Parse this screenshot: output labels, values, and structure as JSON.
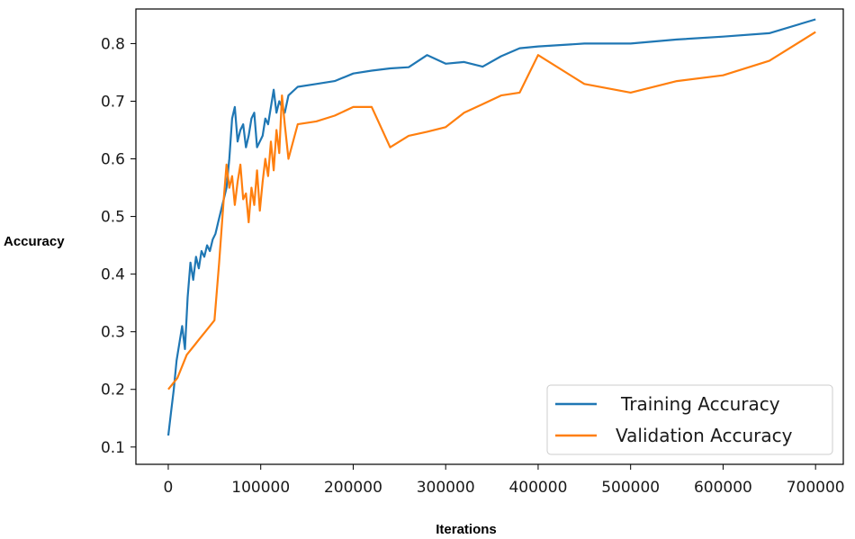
{
  "chart_data": {
    "type": "line",
    "title": "",
    "xlabel": "Iterations",
    "ylabel": "Accuracy",
    "xlim": [
      -35000,
      730000
    ],
    "ylim": [
      0.07,
      0.86
    ],
    "xticks": [
      0,
      100000,
      200000,
      300000,
      400000,
      500000,
      600000,
      700000
    ],
    "xtick_labels": [
      "0",
      "100000",
      "200000",
      "300000",
      "400000",
      "500000",
      "600000",
      "700000"
    ],
    "yticks": [
      0.1,
      0.2,
      0.3,
      0.4,
      0.5,
      0.6,
      0.7,
      0.8
    ],
    "ytick_labels": [
      "0.1",
      "0.2",
      "0.3",
      "0.4",
      "0.5",
      "0.6",
      "0.7",
      "0.8"
    ],
    "grid": false,
    "legend_position": "lower-right",
    "series": [
      {
        "name": "Training Accuracy",
        "color": "#1f77b4",
        "x": [
          0,
          3000,
          6000,
          9000,
          12000,
          15000,
          18000,
          21000,
          24000,
          27000,
          30000,
          33000,
          36000,
          39000,
          42000,
          45000,
          48000,
          51000,
          54000,
          57000,
          60000,
          63000,
          66000,
          69000,
          72000,
          75000,
          78000,
          81000,
          84000,
          87000,
          90000,
          93000,
          96000,
          99000,
          102000,
          105000,
          108000,
          111000,
          114000,
          117000,
          120000,
          123000,
          126000,
          130000,
          140000,
          160000,
          180000,
          200000,
          220000,
          240000,
          260000,
          280000,
          300000,
          320000,
          340000,
          360000,
          380000,
          400000,
          450000,
          500000,
          550000,
          600000,
          650000,
          700000
        ],
        "values": [
          0.12,
          0.16,
          0.2,
          0.25,
          0.28,
          0.31,
          0.27,
          0.36,
          0.42,
          0.39,
          0.43,
          0.41,
          0.44,
          0.43,
          0.45,
          0.44,
          0.46,
          0.47,
          0.49,
          0.51,
          0.53,
          0.55,
          0.6,
          0.67,
          0.69,
          0.63,
          0.65,
          0.66,
          0.62,
          0.64,
          0.67,
          0.68,
          0.62,
          0.63,
          0.64,
          0.67,
          0.66,
          0.69,
          0.72,
          0.68,
          0.7,
          0.69,
          0.68,
          0.71,
          0.725,
          0.73,
          0.735,
          0.748,
          0.753,
          0.757,
          0.759,
          0.78,
          0.765,
          0.768,
          0.76,
          0.778,
          0.792,
          0.795,
          0.8,
          0.8,
          0.807,
          0.812,
          0.818,
          0.842
        ]
      },
      {
        "name": "Validation Accuracy",
        "color": "#ff7f0e",
        "x": [
          0,
          10000,
          20000,
          30000,
          35000,
          40000,
          45000,
          50000,
          55000,
          60000,
          63000,
          66000,
          69000,
          72000,
          75000,
          78000,
          81000,
          84000,
          87000,
          90000,
          93000,
          96000,
          99000,
          102000,
          105000,
          108000,
          111000,
          114000,
          117000,
          120000,
          123000,
          126000,
          130000,
          140000,
          160000,
          180000,
          200000,
          220000,
          240000,
          260000,
          280000,
          300000,
          320000,
          340000,
          360000,
          380000,
          400000,
          450000,
          500000,
          550000,
          600000,
          650000,
          700000
        ],
        "values": [
          0.2,
          0.22,
          0.26,
          0.28,
          0.29,
          0.3,
          0.31,
          0.32,
          0.42,
          0.53,
          0.59,
          0.55,
          0.57,
          0.52,
          0.56,
          0.59,
          0.53,
          0.54,
          0.49,
          0.55,
          0.52,
          0.58,
          0.51,
          0.56,
          0.6,
          0.57,
          0.63,
          0.58,
          0.65,
          0.61,
          0.71,
          0.66,
          0.6,
          0.66,
          0.665,
          0.675,
          0.69,
          0.69,
          0.62,
          0.64,
          0.647,
          0.655,
          0.68,
          0.695,
          0.71,
          0.715,
          0.78,
          0.73,
          0.715,
          0.735,
          0.745,
          0.77,
          0.82
        ]
      }
    ]
  }
}
